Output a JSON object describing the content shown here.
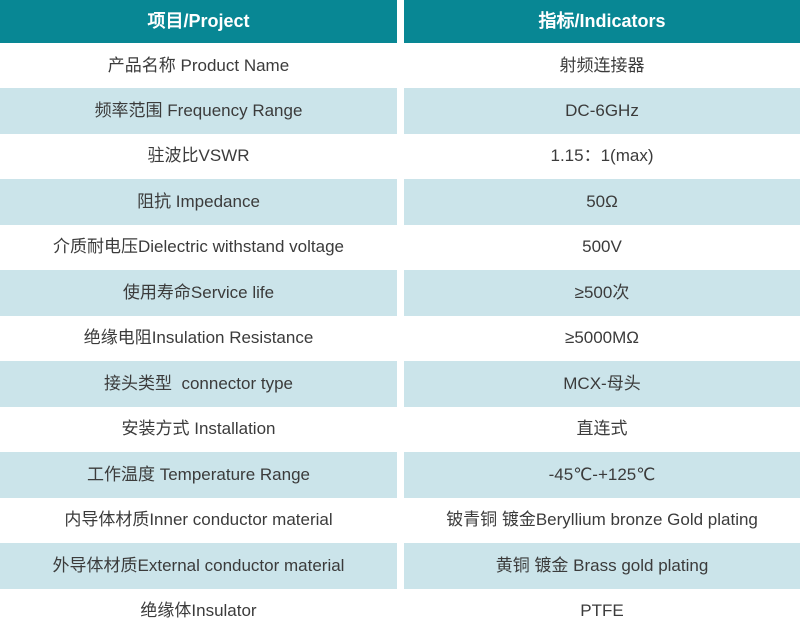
{
  "colors": {
    "header_bg": "#088794",
    "header_text": "#ffffff",
    "row_bg": "#ffffff",
    "row_alt_bg": "#cbe4ea",
    "divider": "#ffffff",
    "body_text": "#3b3b3b"
  },
  "table": {
    "header": {
      "project": "项目/Project",
      "indicators": "指标/Indicators"
    },
    "rows": [
      {
        "project": "产品名称 Product Name",
        "indicator": "射频连接器"
      },
      {
        "project": "频率范围 Frequency Range",
        "indicator": "DC-6GHz"
      },
      {
        "project": "驻波比VSWR",
        "indicator": "1.15：1(max)"
      },
      {
        "project": "阻抗 Impedance",
        "indicator": "50Ω"
      },
      {
        "project": "介质耐电压Dielectric withstand voltage",
        "indicator": "500V"
      },
      {
        "project": "使用寿命Service life",
        "indicator": "≥500次"
      },
      {
        "project": "绝缘电阻Insulation Resistance",
        "indicator": "≥5000MΩ"
      },
      {
        "project": "接头类型  connector type",
        "indicator": "MCX-母头"
      },
      {
        "project": "安装方式 Installation",
        "indicator": "直连式"
      },
      {
        "project": "工作温度 Temperature Range",
        "indicator": "-45℃-+125℃"
      },
      {
        "project": "内导体材质Inner conductor material",
        "indicator": "铍青铜 镀金Beryllium bronze Gold plating"
      },
      {
        "project": "外导体材质External conductor material",
        "indicator": "黄铜 镀金 Brass gold plating"
      },
      {
        "project": "绝缘体Insulator",
        "indicator": "PTFE"
      }
    ]
  }
}
